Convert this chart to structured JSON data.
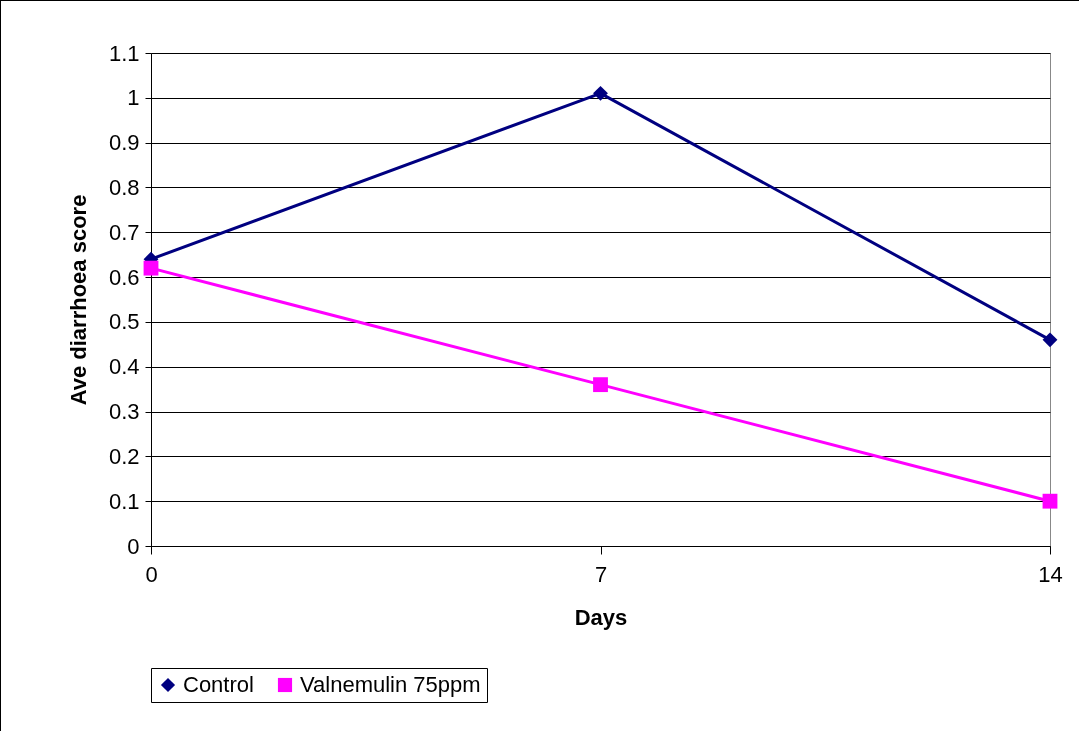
{
  "chart_data": {
    "type": "line",
    "xlabel": "Days",
    "ylabel": "Ave diarrhoea score",
    "categories": [
      "0",
      "7",
      "14"
    ],
    "series": [
      {
        "name": "Control",
        "color": "#000080",
        "marker": "diamond",
        "values": [
          0.64,
          1.01,
          0.46
        ]
      },
      {
        "name": "Valnemulin 75ppm",
        "color": "#ff00ff",
        "marker": "square",
        "values": [
          0.62,
          0.36,
          0.1
        ]
      }
    ],
    "ylim": [
      0,
      1.1
    ],
    "yticks": [
      0,
      0.1,
      0.2,
      0.3,
      0.4,
      0.5,
      0.6,
      0.7,
      0.8,
      0.9,
      1,
      1.1
    ],
    "grid": "y",
    "legend": "bottom",
    "line_style": "solid"
  }
}
